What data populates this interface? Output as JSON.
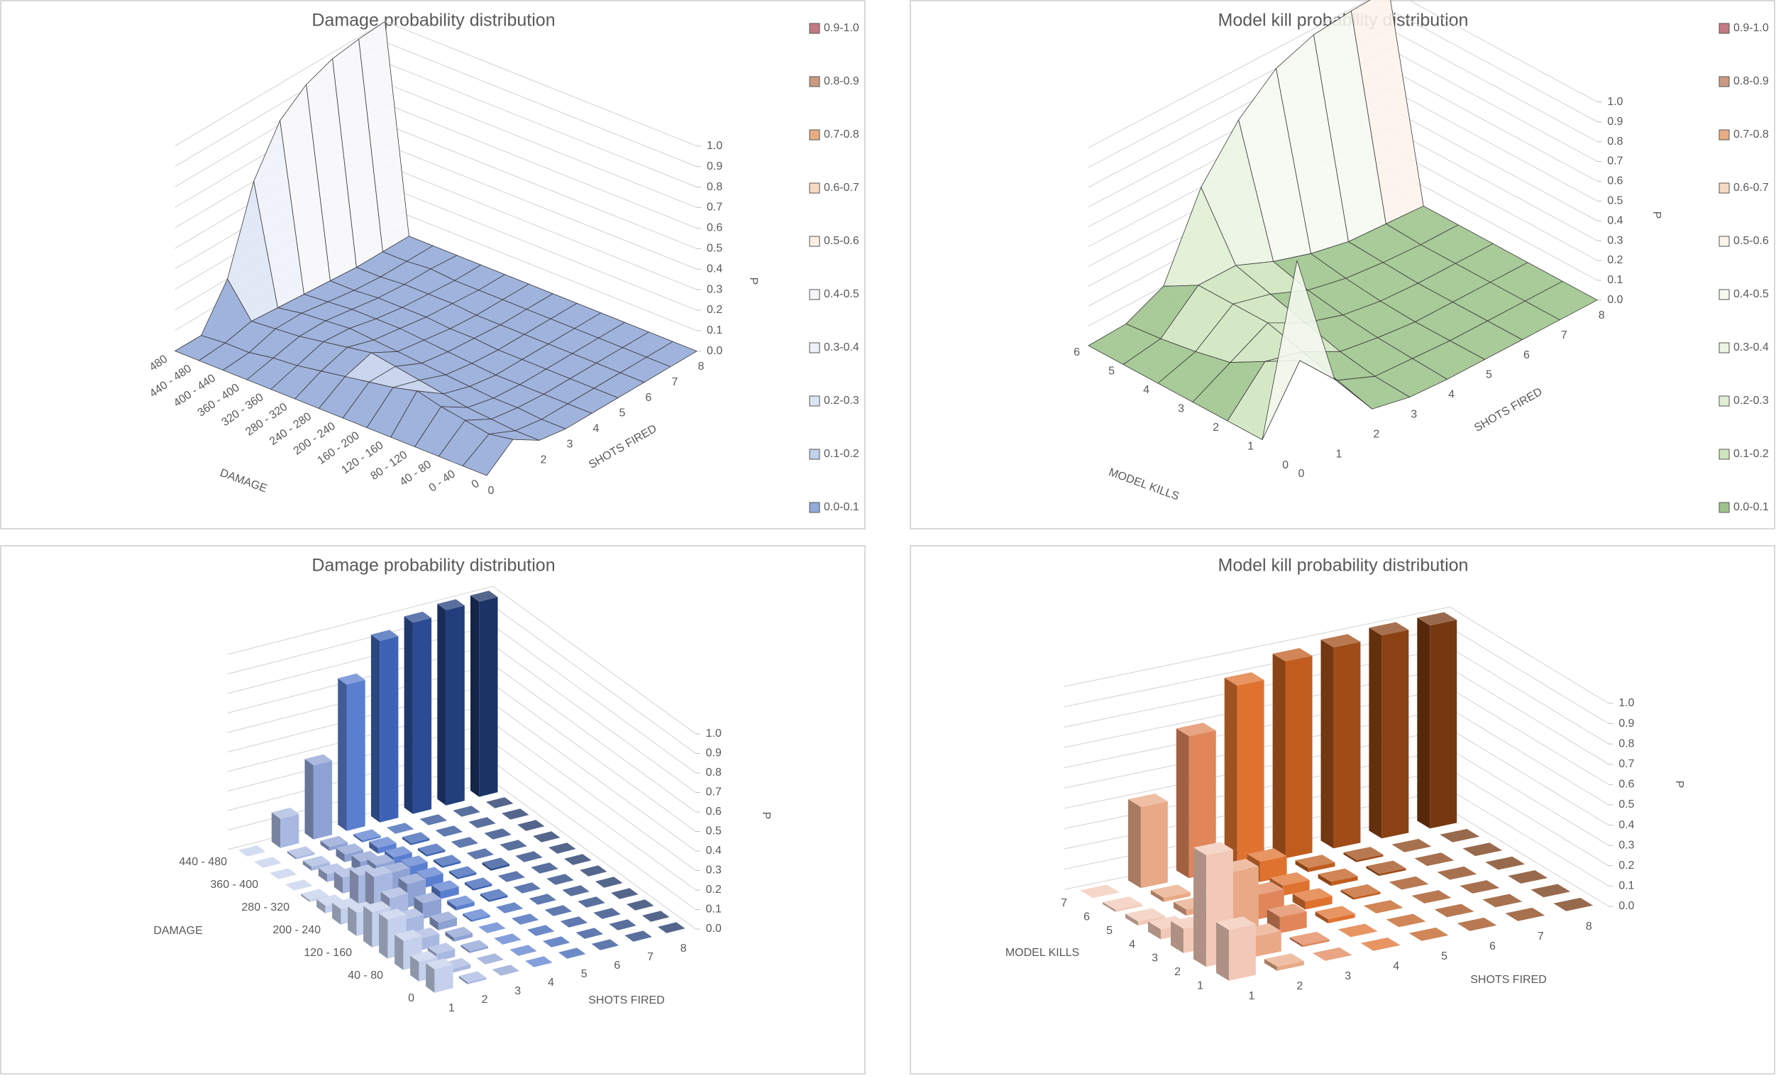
{
  "chart_data": [
    {
      "type": "surface3d",
      "title": "Damage probability distribution",
      "x_label": "SHOTS FIRED",
      "depth_label": "DAMAGE",
      "z_label": "P",
      "x_categories": [
        "0",
        null,
        "2",
        "3",
        "4",
        "5",
        "6",
        "7",
        "8"
      ],
      "depth_categories": [
        "0",
        "0 - 40",
        "40 - 80",
        "80 - 120",
        "120 - 160",
        "160 - 200",
        "200 - 240",
        "240 - 280",
        "280 - 320",
        "320 - 360",
        "360 - 400",
        "400 - 440",
        "440 - 480",
        "480"
      ],
      "values": [
        [
          0,
          0.1,
          0.02,
          0,
          0,
          0,
          0,
          0,
          0
        ],
        [
          0,
          0.08,
          0.02,
          0,
          0,
          0,
          0,
          0,
          0
        ],
        [
          0,
          0.1,
          0.03,
          0.01,
          0,
          0,
          0,
          0,
          0
        ],
        [
          0,
          0.12,
          0.04,
          0.01,
          0,
          0,
          0,
          0,
          0
        ],
        [
          0,
          0.15,
          0.06,
          0.02,
          0,
          0,
          0,
          0,
          0
        ],
        [
          0,
          0.12,
          0.08,
          0.03,
          0.01,
          0,
          0,
          0,
          0
        ],
        [
          0,
          0.1,
          0.1,
          0.04,
          0.02,
          0.01,
          0,
          0,
          0
        ],
        [
          0,
          0.08,
          0.12,
          0.05,
          0.03,
          0.01,
          0,
          0,
          0
        ],
        [
          0,
          0.06,
          0.1,
          0.06,
          0.04,
          0.02,
          0.01,
          0,
          0
        ],
        [
          0,
          0.04,
          0.08,
          0.07,
          0.04,
          0.02,
          0.01,
          0,
          0
        ],
        [
          0,
          0.03,
          0.06,
          0.06,
          0.04,
          0.02,
          0.01,
          0.01,
          0
        ],
        [
          0,
          0.01,
          0.05,
          0.05,
          0.03,
          0.01,
          0,
          0,
          0
        ],
        [
          0,
          0.01,
          0.04,
          0.03,
          0.02,
          0.01,
          0,
          0,
          0
        ],
        [
          0,
          0,
          0.2,
          0.6,
          0.82,
          0.92,
          0.97,
          0.99,
          1.0
        ]
      ],
      "zlim": [
        0,
        1
      ],
      "zticks": [
        {
          "value": 0,
          "label": "0.0"
        },
        0.1,
        0.2,
        0.3,
        0.4,
        0.5,
        0.6,
        0.7,
        0.8,
        0.9,
        {
          "value": 1,
          "label": "1.0"
        }
      ],
      "grid": true,
      "legend": [
        {
          "label": "0.9-1.0",
          "from": 0.9,
          "to": 1.0,
          "color": "#c47a82"
        },
        {
          "label": "0.8-0.9",
          "from": 0.8,
          "to": 0.9,
          "color": "#c99a80"
        },
        {
          "label": "0.7-0.8",
          "from": 0.7,
          "to": 0.8,
          "color": "#e9ad84"
        },
        {
          "label": "0.6-0.7",
          "from": 0.6,
          "to": 0.7,
          "color": "#f6d9c4"
        },
        {
          "label": "0.5-0.6",
          "from": 0.5,
          "to": 0.6,
          "color": "#fcf0e6"
        },
        {
          "label": "0.4-0.5",
          "from": 0.4,
          "to": 0.5,
          "color": "#f7f7fb"
        },
        {
          "label": "0.3-0.4",
          "from": 0.3,
          "to": 0.4,
          "color": "#eef1f9"
        },
        {
          "label": "0.2-0.3",
          "from": 0.2,
          "to": 0.3,
          "color": "#dde5f5"
        },
        {
          "label": "0.1-0.2",
          "from": 0.1,
          "to": 0.2,
          "color": "#c3d0ec"
        },
        {
          "label": "0.0-0.1",
          "from": 0.0,
          "to": 0.1,
          "color": "#93a9d8"
        }
      ]
    },
    {
      "type": "surface3d",
      "title": "Model kill probability distribution",
      "x_label": "SHOTS FIRED",
      "depth_label": "MODEL KILLS",
      "z_label": "P",
      "x_categories": [
        "0",
        "1",
        "2",
        "3",
        "4",
        "5",
        "6",
        "7",
        "8"
      ],
      "depth_categories": [
        "0",
        "1",
        "2",
        "3",
        "4",
        "5",
        "6"
      ],
      "values": [
        [
          1.0,
          0.3,
          0.05,
          0.01,
          0,
          0,
          0,
          0,
          0
        ],
        [
          0,
          0.3,
          0.1,
          0.02,
          0.01,
          0,
          0,
          0,
          0
        ],
        [
          0,
          0.2,
          0.15,
          0.05,
          0.02,
          0,
          0,
          0,
          0
        ],
        [
          0,
          0.1,
          0.2,
          0.1,
          0.04,
          0.01,
          0,
          0,
          0
        ],
        [
          0,
          0.06,
          0.2,
          0.15,
          0.07,
          0.03,
          0.01,
          0,
          0
        ],
        [
          0,
          0.03,
          0.2,
          0.2,
          0.12,
          0.06,
          0.02,
          0.01,
          0
        ],
        [
          0,
          0.01,
          0.1,
          0.5,
          0.74,
          0.9,
          0.97,
          0.99,
          1.0
        ]
      ],
      "zlim": [
        0,
        1
      ],
      "zticks": [
        {
          "value": 0,
          "label": "0.0"
        },
        0.1,
        0.2,
        0.3,
        0.4,
        0.5,
        0.6,
        0.7,
        0.8,
        0.9,
        {
          "value": 1,
          "label": "1.0"
        }
      ],
      "grid": true,
      "legend": [
        {
          "label": "0.9-1.0",
          "from": 0.9,
          "to": 1.0,
          "color": "#c47a82"
        },
        {
          "label": "0.8-0.9",
          "from": 0.8,
          "to": 0.9,
          "color": "#c99a80"
        },
        {
          "label": "0.7-0.8",
          "from": 0.7,
          "to": 0.8,
          "color": "#e9ad84"
        },
        {
          "label": "0.6-0.7",
          "from": 0.6,
          "to": 0.7,
          "color": "#f6d9c4"
        },
        {
          "label": "0.5-0.6",
          "from": 0.5,
          "to": 0.6,
          "color": "#fcf3ea"
        },
        {
          "label": "0.4-0.5",
          "from": 0.4,
          "to": 0.5,
          "color": "#f5f9f0"
        },
        {
          "label": "0.3-0.4",
          "from": 0.3,
          "to": 0.4,
          "color": "#ebf5e2"
        },
        {
          "label": "0.2-0.3",
          "from": 0.2,
          "to": 0.3,
          "color": "#e0efd4"
        },
        {
          "label": "0.1-0.2",
          "from": 0.1,
          "to": 0.2,
          "color": "#cfe5be"
        },
        {
          "label": "0.0-0.1",
          "from": 0.0,
          "to": 0.1,
          "color": "#9dc38b"
        }
      ]
    },
    {
      "type": "bar3d",
      "title": "Damage probability distribution",
      "x_label": "SHOTS FIRED",
      "depth_label": "DAMAGE",
      "z_label": "P",
      "x_categories": [
        "1",
        "2",
        "3",
        "4",
        "5",
        "6",
        "7",
        "8"
      ],
      "depth_categories": [
        "0",
        null,
        "40 - 80",
        null,
        "120 - 160",
        null,
        "200 - 240",
        null,
        "280 - 320",
        null,
        "360 - 400",
        null,
        "440 - 480"
      ],
      "values": [
        [
          0.12,
          0.01,
          0,
          0,
          0,
          0,
          0,
          0
        ],
        [
          0.1,
          0.02,
          0,
          0,
          0,
          0,
          0,
          0
        ],
        [
          0.15,
          0.04,
          0.01,
          0,
          0,
          0,
          0,
          0
        ],
        [
          0.2,
          0.06,
          0.02,
          0,
          0,
          0,
          0,
          0
        ],
        [
          0.18,
          0.1,
          0.04,
          0.01,
          0,
          0,
          0,
          0
        ],
        [
          0.12,
          0.15,
          0.08,
          0.02,
          0.01,
          0,
          0,
          0
        ],
        [
          0.08,
          0.2,
          0.12,
          0.04,
          0.01,
          0,
          0,
          0
        ],
        [
          0.04,
          0.15,
          0.12,
          0.05,
          0.01,
          0.01,
          0,
          0
        ],
        [
          0.01,
          0.08,
          0.1,
          0.05,
          0.01,
          0,
          0,
          0
        ],
        [
          0,
          0.04,
          0.06,
          0.04,
          0.01,
          0,
          0,
          0
        ],
        [
          0,
          0.02,
          0.04,
          0.03,
          0.01,
          0,
          0,
          0
        ],
        [
          0,
          0.01,
          0.02,
          0.01,
          0,
          0,
          0,
          0
        ],
        [
          0,
          0.15,
          0.38,
          0.75,
          0.93,
          0.98,
          1.0,
          1.0
        ]
      ],
      "zlim": [
        0,
        1
      ],
      "zticks": [
        {
          "value": 0,
          "label": "0.0"
        },
        0.1,
        0.2,
        0.3,
        0.4,
        0.5,
        0.6,
        0.7,
        0.8,
        0.9,
        {
          "value": 1,
          "label": "1.0"
        }
      ],
      "grid": true,
      "colors": [
        "#c5d0ec",
        "#a9b8e0",
        "#8fa2d4",
        "#5b7fd0",
        "#3c63b5",
        "#2b4c94",
        "#223f7c",
        "#1c3366"
      ]
    },
    {
      "type": "bar3d",
      "title": "Model kill probability distribution",
      "x_label": "SHOTS FIRED",
      "depth_label": "MODEL KILLS",
      "z_label": "P",
      "x_categories": [
        "1",
        "2",
        "3",
        "4",
        "5",
        "6",
        "7",
        "8"
      ],
      "depth_categories": [
        "1",
        "2",
        "3",
        "4",
        "5",
        "6",
        "7"
      ],
      "values": [
        [
          0.25,
          0.02,
          0,
          0,
          0,
          0,
          0,
          0
        ],
        [
          0.55,
          0.1,
          0.01,
          0,
          0,
          0,
          0,
          0
        ],
        [
          0.12,
          0.35,
          0.08,
          0.02,
          0,
          0,
          0,
          0
        ],
        [
          0.05,
          0.08,
          0.12,
          0.04,
          0.01,
          0,
          0,
          0
        ],
        [
          0.02,
          0.03,
          0.07,
          0.05,
          0.02,
          0.01,
          0,
          0
        ],
        [
          0.01,
          0.02,
          0.02,
          0.1,
          0.02,
          0.01,
          0,
          0
        ],
        [
          0,
          0.4,
          0.7,
          0.9,
          0.97,
          0.99,
          1.0,
          1.0
        ]
      ],
      "zlim": [
        0,
        1
      ],
      "zticks": [
        {
          "value": 0,
          "label": "0.0"
        },
        0.1,
        0.2,
        0.3,
        0.4,
        0.5,
        0.6,
        0.7,
        0.8,
        0.9,
        {
          "value": 1,
          "label": "1.0"
        }
      ],
      "grid": true,
      "colors": [
        "#f2c9b8",
        "#e9a987",
        "#e0865a",
        "#e07230",
        "#c05d1e",
        "#a04c18",
        "#8a4214",
        "#763811"
      ]
    }
  ]
}
